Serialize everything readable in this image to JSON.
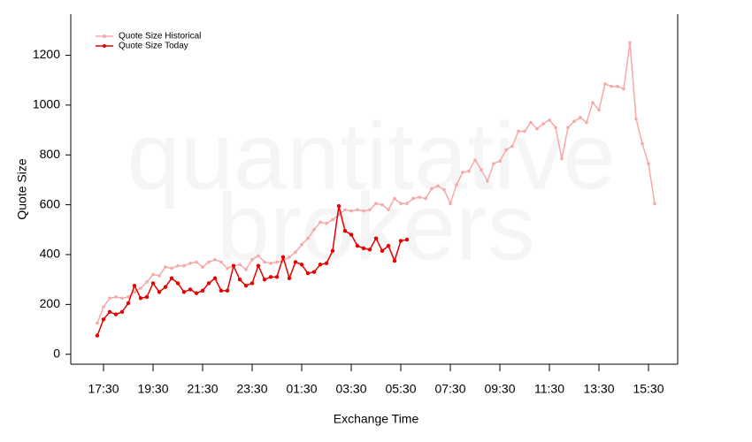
{
  "chart_data": {
    "type": "line",
    "watermark": [
      "quantitative",
      "brokers"
    ],
    "x_label": "Exchange Time",
    "y_label": "Quote Size",
    "categories": [
      null,
      "17:30",
      null,
      null,
      null,
      null,
      null,
      null,
      null,
      "19:30",
      null,
      null,
      null,
      null,
      null,
      null,
      null,
      "21:30",
      null,
      null,
      null,
      null,
      null,
      null,
      null,
      "23:30",
      null,
      null,
      null,
      null,
      null,
      null,
      null,
      "01:30",
      null,
      null,
      null,
      null,
      null,
      null,
      null,
      "03:30",
      null,
      null,
      null,
      null,
      null,
      null,
      null,
      "05:30",
      null,
      null,
      null,
      null,
      null,
      null,
      null,
      "07:30",
      null,
      null,
      null,
      null,
      null,
      null,
      null,
      "09:30",
      null,
      null,
      null,
      null,
      null,
      null,
      null,
      "11:30",
      null,
      null,
      null,
      null,
      null,
      null,
      null,
      "13:30",
      null,
      null,
      null,
      null,
      null,
      null,
      null,
      "15:30",
      null
    ],
    "series": [
      {
        "name": "Quote Size Historical",
        "color": "#f7a8a8",
        "values": [
          125,
          190,
          225,
          230,
          225,
          230,
          250,
          265,
          290,
          320,
          315,
          350,
          345,
          355,
          355,
          365,
          370,
          350,
          370,
          380,
          370,
          345,
          355,
          360,
          340,
          380,
          395,
          370,
          365,
          370,
          375,
          390,
          410,
          440,
          465,
          500,
          530,
          525,
          540,
          560,
          580,
          575,
          580,
          575,
          580,
          605,
          600,
          580,
          625,
          605,
          605,
          625,
          630,
          625,
          665,
          675,
          660,
          605,
          680,
          730,
          735,
          780,
          740,
          695,
          765,
          775,
          820,
          835,
          895,
          895,
          930,
          905,
          925,
          940,
          910,
          785,
          910,
          935,
          950,
          930,
          1010,
          980,
          1085,
          1075,
          1075,
          1065,
          1250,
          945,
          845,
          765,
          605
        ]
      },
      {
        "name": "Quote Size Today",
        "color": "#e60000",
        "values": [
          75,
          140,
          170,
          160,
          170,
          205,
          275,
          225,
          230,
          285,
          250,
          270,
          305,
          285,
          250,
          260,
          245,
          255,
          285,
          305,
          255,
          255,
          355,
          300,
          275,
          285,
          355,
          300,
          310,
          310,
          390,
          305,
          370,
          360,
          325,
          330,
          360,
          365,
          415,
          595,
          495,
          480,
          435,
          425,
          420,
          465,
          415,
          435,
          375,
          455,
          460,
          null,
          null,
          null,
          null,
          null,
          null,
          null,
          null,
          null,
          null,
          null,
          null,
          null,
          null,
          null,
          null,
          null,
          null,
          null,
          null,
          null,
          null,
          null,
          null,
          null,
          null,
          null,
          null,
          null,
          null,
          null,
          null,
          null,
          null,
          null,
          null,
          null,
          null,
          null,
          null
        ]
      }
    ],
    "ylim": [
      -40,
      1365
    ],
    "yticks": [
      0,
      200,
      400,
      600,
      800,
      1000,
      1200
    ],
    "legend": "top-left"
  }
}
